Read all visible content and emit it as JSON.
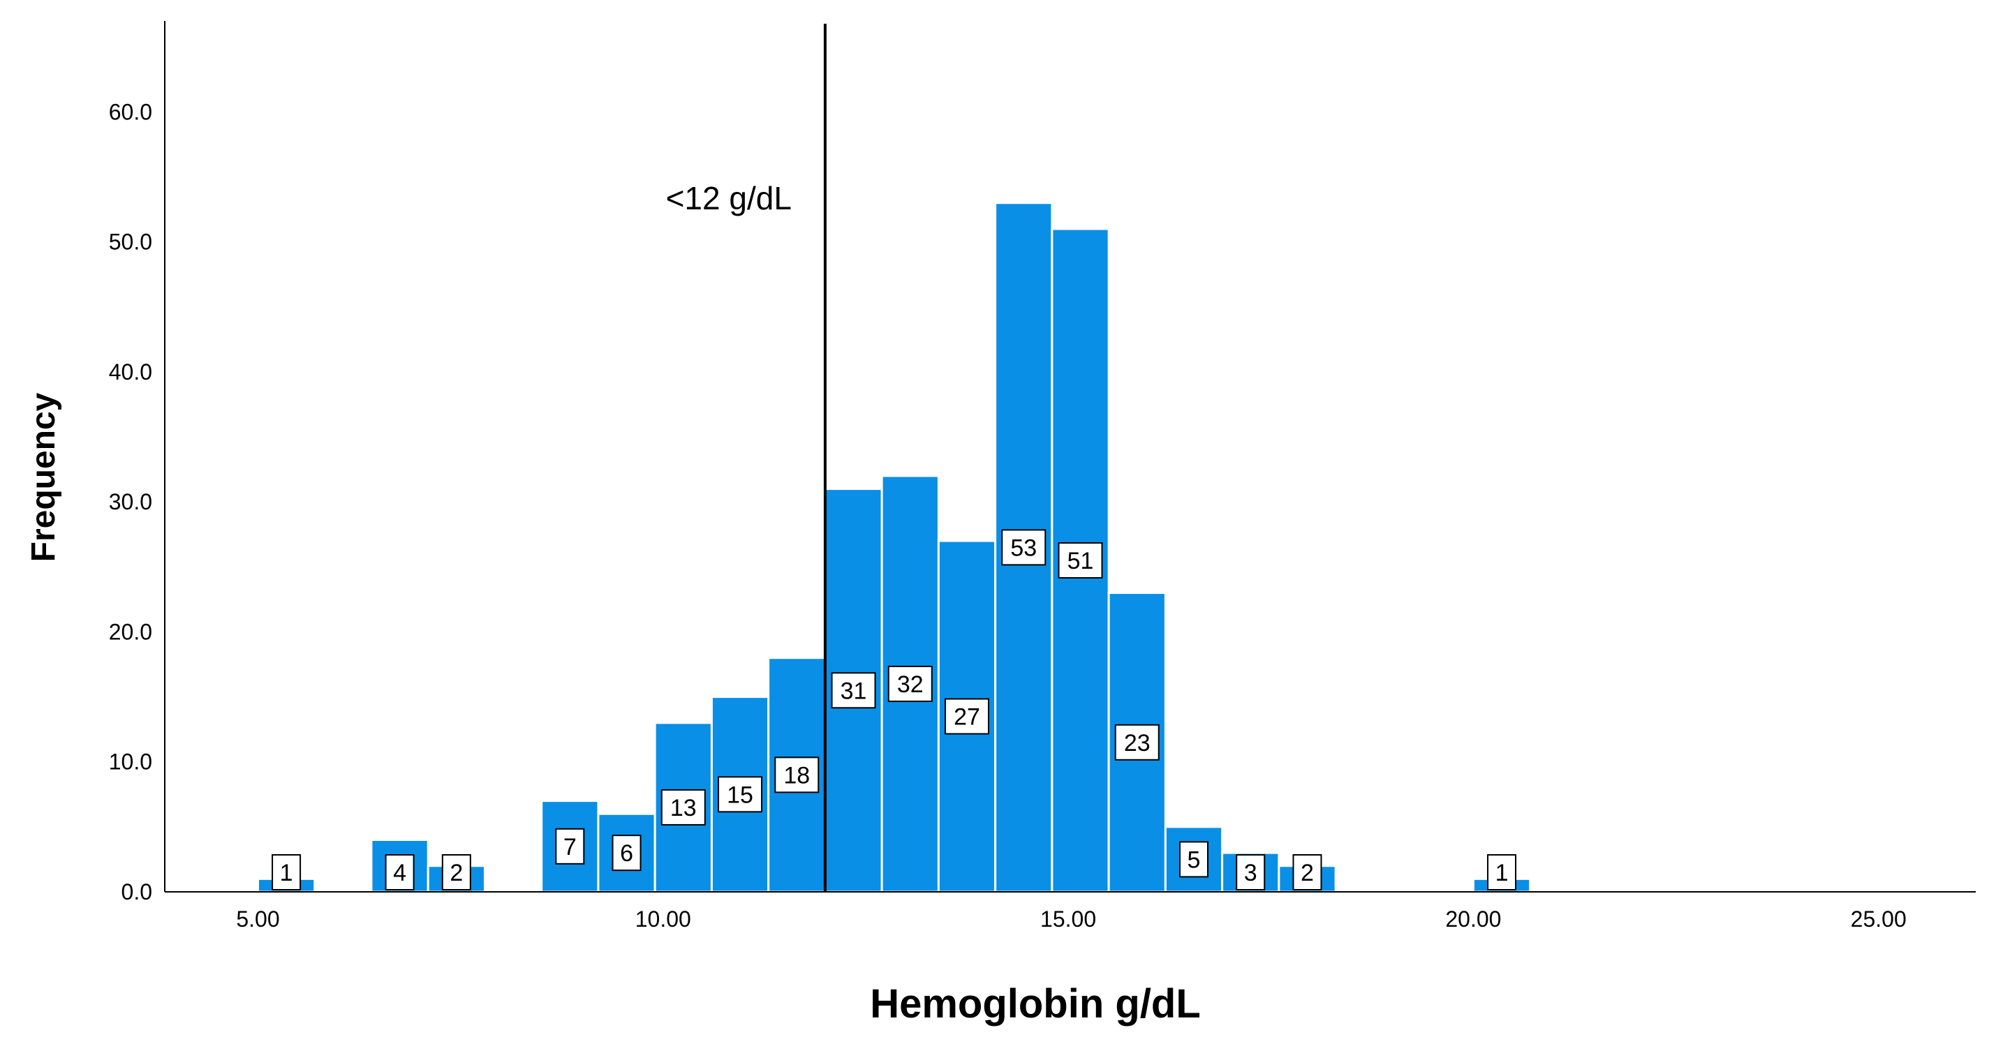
{
  "chart_data": {
    "type": "bar",
    "title": "",
    "xlabel": "Hemoglobin g/dL",
    "ylabel": "Frequency",
    "xlim": [
      3.85,
      26.2
    ],
    "ylim": [
      0,
      67
    ],
    "x_ticks": [
      5,
      10,
      15,
      20,
      25
    ],
    "x_tick_labels": [
      "5.00",
      "10.00",
      "15.00",
      "20.00",
      "25.00"
    ],
    "y_ticks": [
      0,
      10,
      20,
      30,
      40,
      50,
      60
    ],
    "y_tick_labels": [
      "0.0",
      "10.0",
      "20.0",
      "30.0",
      "40.0",
      "50.0",
      "60.0"
    ],
    "grid": false,
    "bin_width": 0.7,
    "bar_color": "#0a8fe6",
    "bins": [
      {
        "start": 5.0,
        "value": 1,
        "label": "1"
      },
      {
        "start": 6.4,
        "value": 4,
        "label": "4"
      },
      {
        "start": 7.1,
        "value": 2,
        "label": "2"
      },
      {
        "start": 8.5,
        "value": 7,
        "label": "7"
      },
      {
        "start": 9.2,
        "value": 6,
        "label": "6"
      },
      {
        "start": 9.9,
        "value": 13,
        "label": "13"
      },
      {
        "start": 10.6,
        "value": 15,
        "label": "15"
      },
      {
        "start": 11.3,
        "value": 18,
        "label": "18"
      },
      {
        "start": 12.0,
        "value": 31,
        "label": "31"
      },
      {
        "start": 12.7,
        "value": 32,
        "label": "32"
      },
      {
        "start": 13.4,
        "value": 27,
        "label": "27"
      },
      {
        "start": 14.1,
        "value": 53,
        "label": "53"
      },
      {
        "start": 14.8,
        "value": 51,
        "label": "51"
      },
      {
        "start": 15.5,
        "value": 23,
        "label": "23"
      },
      {
        "start": 16.2,
        "value": 5,
        "label": "5"
      },
      {
        "start": 16.9,
        "value": 3,
        "label": "3"
      },
      {
        "start": 17.6,
        "value": 2,
        "label": "2"
      },
      {
        "start": 20.0,
        "value": 1,
        "label": "1"
      }
    ],
    "reference_line": {
      "x": 12.0,
      "label": "<12 g/dL"
    }
  }
}
